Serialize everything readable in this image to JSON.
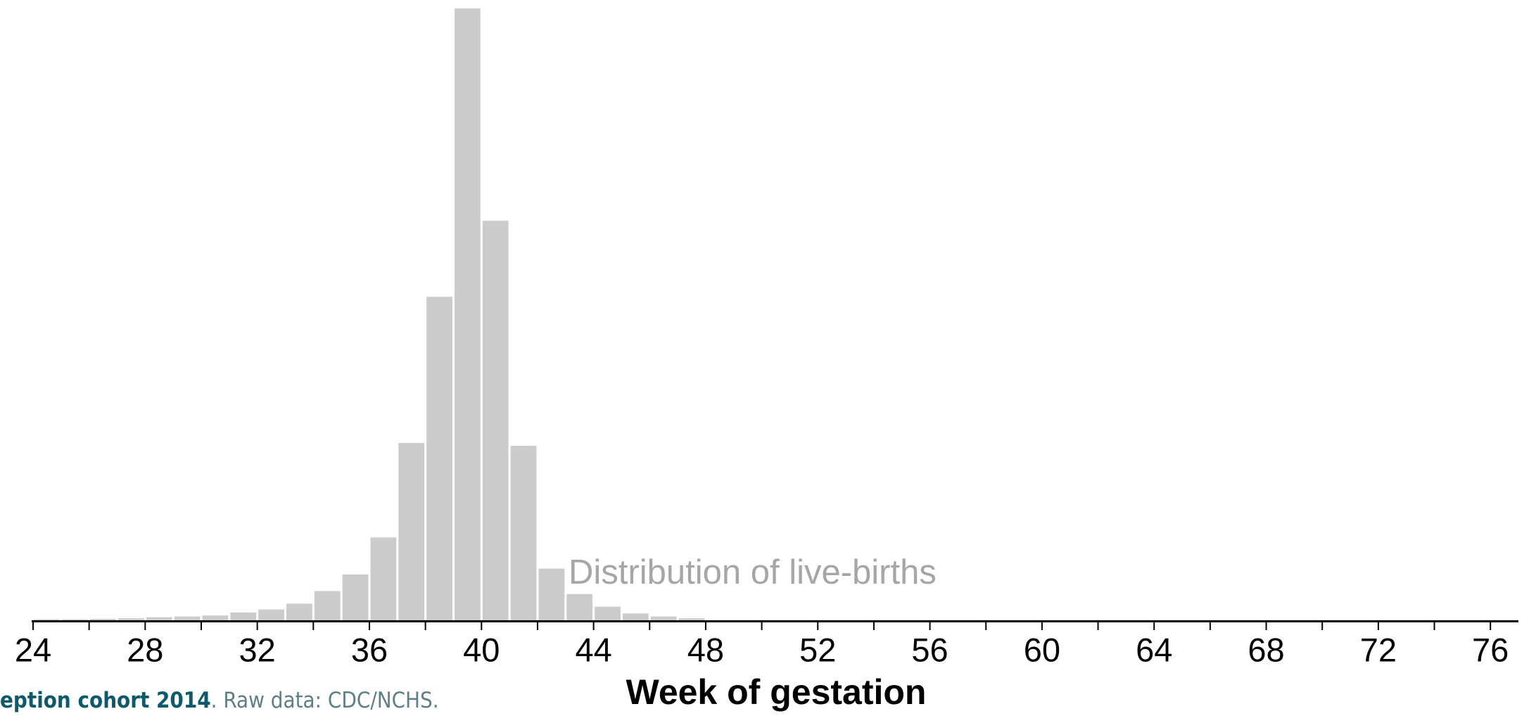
{
  "chart_data": {
    "type": "histogram",
    "xlabel": "Week of gestation",
    "annotation": "Distribution of live-births",
    "caption": {
      "bold": "eption cohort 2014",
      "text": ". Raw data: CDC/NCHS."
    },
    "bins": [
      24,
      25,
      26,
      27,
      28,
      29,
      30,
      31,
      32,
      33,
      34,
      35,
      36,
      37,
      38,
      39,
      40,
      41,
      42,
      43,
      44,
      45,
      46,
      47,
      48
    ],
    "values": [
      0.05,
      0.05,
      0.07,
      0.1,
      0.15,
      0.19,
      0.24,
      0.39,
      0.54,
      0.83,
      1.46,
      2.29,
      4.14,
      8.86,
      16.17,
      30.58,
      19.97,
      8.72,
      2.58,
      1.31,
      0.68,
      0.34,
      0.19,
      0.1
    ],
    "color": "#cccccc",
    "xlim": [
      24,
      77
    ],
    "ylim": [
      0,
      31
    ],
    "xticks": [
      24,
      28,
      32,
      36,
      40,
      44,
      48,
      52,
      56,
      60,
      64,
      68,
      72,
      76
    ],
    "xminor_ticks": [
      26,
      30,
      34,
      38,
      42,
      46,
      50,
      54,
      58,
      62,
      66,
      70,
      74
    ]
  }
}
